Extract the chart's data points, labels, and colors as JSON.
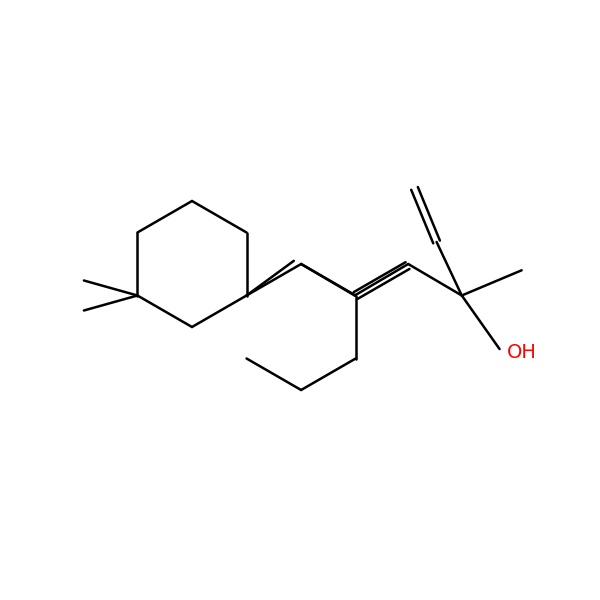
{
  "background_color": "#ffffff",
  "line_color": "#000000",
  "oh_color": "#ff0000",
  "line_width": 1.8,
  "figsize": [
    6.0,
    6.0
  ],
  "dpi": 100,
  "oh_fontsize": 14,
  "oh_text": "OH"
}
